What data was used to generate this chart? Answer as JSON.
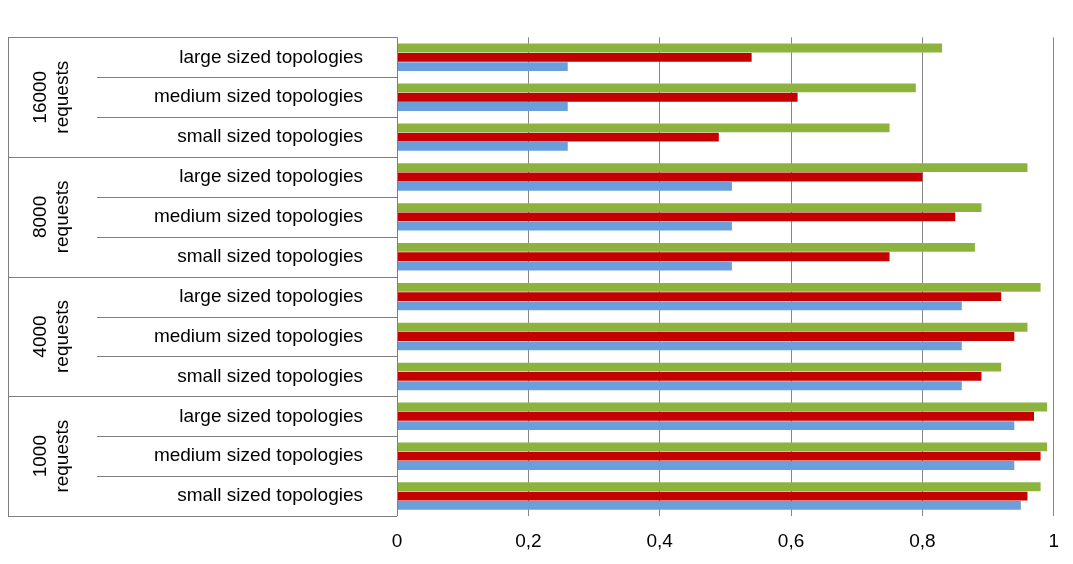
{
  "chart_data": {
    "type": "bar",
    "orientation": "horizontal",
    "categories": [
      "large sized topologies",
      "medium sized topologies",
      "small sized topologies",
      "large sized topologies",
      "medium sized topologies",
      "small sized topologies",
      "large sized topologies",
      "medium sized topologies",
      "small sized topologies",
      "large sized topologies",
      "medium sized topologies",
      "small sized topologies"
    ],
    "series": [
      {
        "color": "#8cb43c",
        "values": [
          0.83,
          0.79,
          0.75,
          0.96,
          0.89,
          0.88,
          0.98,
          0.96,
          0.92,
          0.99,
          0.99,
          0.98
        ]
      },
      {
        "color": "#c40000",
        "values": [
          0.54,
          0.61,
          0.49,
          0.8,
          0.85,
          0.75,
          0.92,
          0.94,
          0.89,
          0.97,
          0.98,
          0.96
        ]
      },
      {
        "color": "#6a9fdc",
        "values": [
          0.26,
          0.26,
          0.26,
          0.51,
          0.51,
          0.51,
          0.86,
          0.86,
          0.86,
          0.94,
          0.94,
          0.95
        ]
      }
    ],
    "xlim": [
      0,
      1
    ],
    "xticks": [
      0,
      {
        "value": 0.2,
        "label": "0,2"
      },
      {
        "value": 0.4,
        "label": "0,4"
      },
      {
        "value": 0.6,
        "label": "0,6"
      },
      {
        "value": 0.8,
        "label": "0,8"
      },
      1
    ],
    "grid": "x",
    "legend": false,
    "annotations": [
      "16000\nrequests",
      "8000\nrequests",
      "4000\nrequests",
      "1000\nrequests"
    ]
  }
}
